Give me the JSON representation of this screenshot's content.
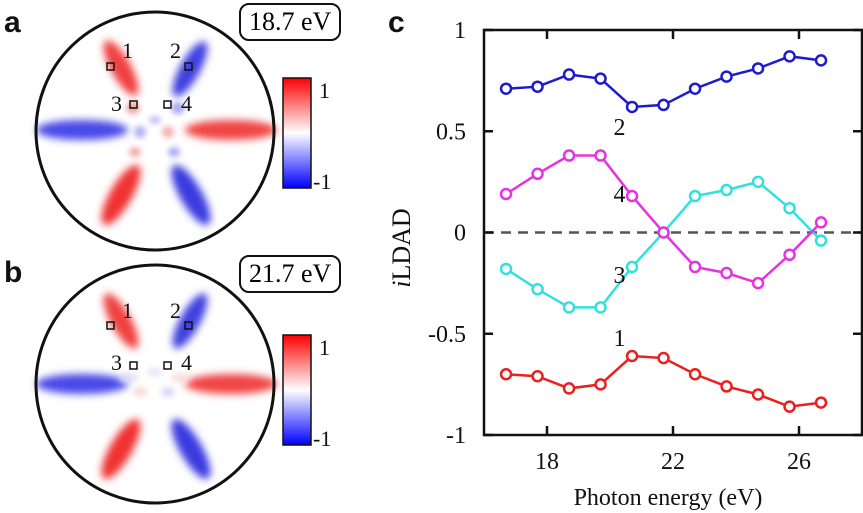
{
  "panels": {
    "a": {
      "letter": "a",
      "energy": "18.7 eV"
    },
    "b": {
      "letter": "b",
      "energy": "21.7 eV"
    },
    "c": {
      "letter": "c"
    }
  },
  "colorbar": {
    "max_label": "1",
    "min_label": "-1",
    "colors": [
      "#ff0000",
      "#ffffff",
      "#0000ff"
    ]
  },
  "markers": [
    {
      "label": "1"
    },
    {
      "label": "2"
    },
    {
      "label": "3"
    },
    {
      "label": "4"
    }
  ],
  "chart_data": {
    "type": "line",
    "xlabel": "Photon energy (eV)",
    "ylabel": "iLDAD",
    "xlim": [
      16,
      28
    ],
    "ylim": [
      -1,
      1
    ],
    "xticks": [
      18,
      22,
      26
    ],
    "yticks": [
      1,
      0.5,
      0,
      -0.5,
      -1
    ],
    "ytick_labels": [
      "1",
      "0.5",
      "0",
      "-0.5",
      "-1"
    ],
    "reference_line": 0,
    "x": [
      16.7,
      17.7,
      18.7,
      19.7,
      20.7,
      21.7,
      22.7,
      23.7,
      24.7,
      25.7,
      26.7
    ],
    "series": [
      {
        "name": "1",
        "color": "#e8201e",
        "values": [
          -0.7,
          -0.71,
          -0.77,
          -0.75,
          -0.61,
          -0.62,
          -0.7,
          -0.76,
          -0.8,
          -0.86,
          -0.84
        ]
      },
      {
        "name": "2",
        "color": "#1c1ccc",
        "values": [
          0.71,
          0.72,
          0.78,
          0.76,
          0.62,
          0.63,
          0.71,
          0.77,
          0.81,
          0.87,
          0.85
        ]
      },
      {
        "name": "3",
        "color": "#33e0e0",
        "values": [
          -0.18,
          -0.28,
          -0.37,
          -0.37,
          -0.17,
          0.0,
          0.18,
          0.21,
          0.25,
          0.12,
          -0.04
        ]
      },
      {
        "name": "4",
        "color": "#e533e0",
        "values": [
          0.19,
          0.29,
          0.38,
          0.38,
          0.18,
          0.0,
          -0.17,
          -0.2,
          -0.25,
          -0.11,
          0.05
        ]
      }
    ]
  }
}
